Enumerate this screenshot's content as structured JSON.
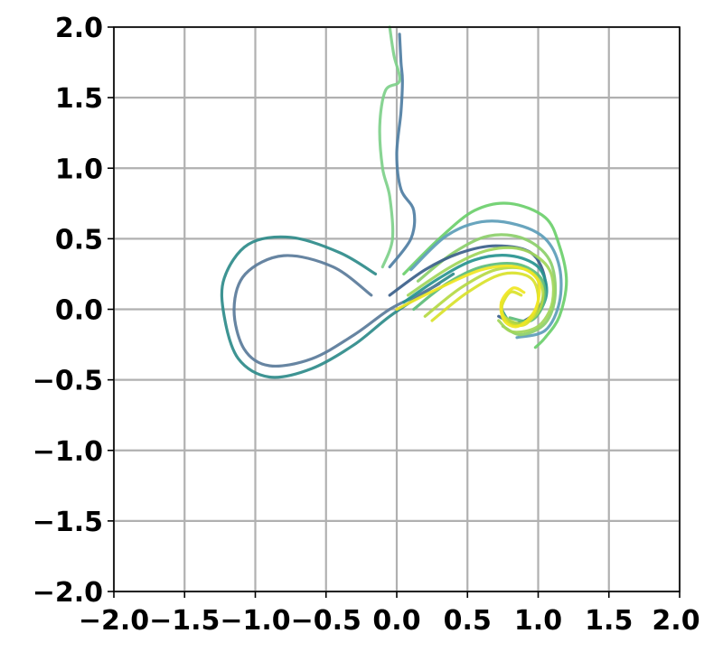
{
  "chart_data": {
    "type": "line",
    "title": "",
    "xlabel": "",
    "ylabel": "",
    "xlim": [
      -2.0,
      2.0
    ],
    "ylim": [
      -2.0,
      2.0
    ],
    "grid": true,
    "legend": "none",
    "x_ticks": [
      -2.0,
      -1.5,
      -1.0,
      -0.5,
      0.0,
      0.5,
      1.0,
      1.5,
      2.0
    ],
    "y_ticks": [
      -2.0,
      -1.5,
      -1.0,
      -0.5,
      0.0,
      0.5,
      1.0,
      1.5,
      2.0
    ],
    "x_tick_labels": [
      "−2.0",
      "−1.5",
      "−1.0",
      "−0.5",
      "0.0",
      "0.5",
      "1.0",
      "1.5",
      "2.0"
    ],
    "y_tick_labels": [
      "−2.0",
      "−1.5",
      "−1.0",
      "−0.5",
      "0.0",
      "0.5",
      "1.0",
      "1.5",
      "2.0"
    ],
    "series": [
      {
        "color": "#2e8b8a",
        "points": [
          [
            -0.15,
            0.25
          ],
          [
            -0.4,
            0.4
          ],
          [
            -0.75,
            0.51
          ],
          [
            -1.05,
            0.46
          ],
          [
            -1.22,
            0.22
          ],
          [
            -1.22,
            -0.05
          ],
          [
            -1.12,
            -0.35
          ],
          [
            -0.9,
            -0.48
          ],
          [
            -0.6,
            -0.42
          ],
          [
            -0.3,
            -0.25
          ],
          [
            -0.05,
            -0.05
          ],
          [
            0.2,
            0.12
          ],
          [
            0.4,
            0.25
          ]
        ]
      },
      {
        "color": "#5a7b9a",
        "points": [
          [
            -0.18,
            0.1
          ],
          [
            -0.45,
            0.3
          ],
          [
            -0.8,
            0.38
          ],
          [
            -1.07,
            0.25
          ],
          [
            -1.15,
            0.0
          ],
          [
            -1.08,
            -0.28
          ],
          [
            -0.9,
            -0.4
          ],
          [
            -0.6,
            -0.35
          ],
          [
            -0.3,
            -0.18
          ],
          [
            -0.05,
            0.0
          ],
          [
            0.15,
            0.1
          ],
          [
            0.3,
            0.18
          ]
        ]
      },
      {
        "color": "#7ed08a",
        "points": [
          [
            -0.05,
            2.0
          ],
          [
            -0.02,
            1.8
          ],
          [
            0.02,
            1.62
          ],
          [
            -0.08,
            1.55
          ],
          [
            -0.12,
            1.3
          ],
          [
            -0.1,
            1.0
          ],
          [
            -0.05,
            0.8
          ],
          [
            -0.03,
            0.5
          ],
          [
            -0.1,
            0.3
          ]
        ]
      },
      {
        "color": "#4f7ea3",
        "points": [
          [
            0.02,
            1.95
          ],
          [
            0.03,
            1.75
          ],
          [
            0.04,
            1.62
          ],
          [
            0.03,
            1.4
          ],
          [
            0.0,
            1.1
          ],
          [
            0.03,
            0.85
          ],
          [
            0.12,
            0.7
          ],
          [
            0.1,
            0.5
          ],
          [
            -0.05,
            0.3
          ]
        ]
      },
      {
        "color": "#6bcf6b",
        "points": [
          [
            0.05,
            0.25
          ],
          [
            0.3,
            0.5
          ],
          [
            0.55,
            0.7
          ],
          [
            0.8,
            0.75
          ],
          [
            1.05,
            0.65
          ],
          [
            1.15,
            0.45
          ],
          [
            1.2,
            0.2
          ],
          [
            1.15,
            -0.05
          ],
          [
            1.05,
            -0.2
          ],
          [
            0.98,
            -0.27
          ]
        ]
      },
      {
        "color": "#5c9db8",
        "points": [
          [
            0.1,
            0.28
          ],
          [
            0.35,
            0.52
          ],
          [
            0.6,
            0.62
          ],
          [
            0.85,
            0.6
          ],
          [
            1.05,
            0.5
          ],
          [
            1.15,
            0.3
          ],
          [
            1.15,
            0.05
          ],
          [
            1.05,
            -0.15
          ],
          [
            0.85,
            -0.2
          ]
        ]
      },
      {
        "color": "#8ccf6a",
        "points": [
          [
            0.15,
            0.2
          ],
          [
            0.4,
            0.4
          ],
          [
            0.65,
            0.52
          ],
          [
            0.9,
            0.5
          ],
          [
            1.08,
            0.35
          ],
          [
            1.12,
            0.1
          ],
          [
            1.05,
            -0.1
          ],
          [
            0.88,
            -0.18
          ],
          [
            0.75,
            -0.12
          ]
        ]
      },
      {
        "color": "#3b5f8a",
        "points": [
          [
            -0.05,
            0.1
          ],
          [
            0.2,
            0.28
          ],
          [
            0.45,
            0.4
          ],
          [
            0.7,
            0.45
          ],
          [
            0.95,
            0.4
          ],
          [
            1.05,
            0.2
          ],
          [
            1.0,
            0.0
          ],
          [
            0.85,
            -0.1
          ],
          [
            0.72,
            -0.05
          ]
        ]
      },
      {
        "color": "#27948f",
        "points": [
          [
            0.05,
            0.05
          ],
          [
            0.3,
            0.22
          ],
          [
            0.55,
            0.35
          ],
          [
            0.8,
            0.38
          ],
          [
            1.0,
            0.3
          ],
          [
            1.06,
            0.12
          ],
          [
            0.98,
            -0.05
          ],
          [
            0.82,
            -0.1
          ],
          [
            0.74,
            0.0
          ]
        ]
      },
      {
        "color": "#5dbd7a",
        "points": [
          [
            0.12,
            0.0
          ],
          [
            0.35,
            0.18
          ],
          [
            0.6,
            0.3
          ],
          [
            0.85,
            0.32
          ],
          [
            1.02,
            0.22
          ],
          [
            1.04,
            0.05
          ],
          [
            0.95,
            -0.08
          ],
          [
            0.8,
            -0.06
          ]
        ]
      },
      {
        "color": "#b5d944",
        "points": [
          [
            0.2,
            -0.05
          ],
          [
            0.45,
            0.15
          ],
          [
            0.7,
            0.28
          ],
          [
            0.92,
            0.28
          ],
          [
            1.03,
            0.15
          ],
          [
            1.0,
            -0.02
          ],
          [
            0.88,
            -0.1
          ],
          [
            0.76,
            -0.05
          ],
          [
            0.74,
            0.05
          ]
        ]
      },
      {
        "color": "#d9e22a",
        "points": [
          [
            0.25,
            -0.08
          ],
          [
            0.5,
            0.12
          ],
          [
            0.75,
            0.25
          ],
          [
            0.95,
            0.22
          ],
          [
            1.0,
            0.05
          ],
          [
            0.92,
            -0.1
          ],
          [
            0.8,
            -0.1
          ],
          [
            0.74,
            0.0
          ],
          [
            0.8,
            0.12
          ],
          [
            0.88,
            0.1
          ]
        ]
      },
      {
        "color": "#f0e622",
        "points": [
          [
            0.0,
            0.0
          ],
          [
            0.3,
            0.15
          ],
          [
            0.6,
            0.28
          ],
          [
            0.85,
            0.3
          ],
          [
            1.0,
            0.2
          ],
          [
            0.98,
            0.0
          ],
          [
            0.86,
            -0.12
          ],
          [
            0.76,
            -0.08
          ],
          [
            0.74,
            0.05
          ],
          [
            0.82,
            0.15
          ],
          [
            0.9,
            0.12
          ]
        ]
      },
      {
        "color": "#a1d65a",
        "points": [
          [
            0.08,
            0.1
          ],
          [
            0.38,
            0.3
          ],
          [
            0.65,
            0.42
          ],
          [
            0.9,
            0.42
          ],
          [
            1.08,
            0.28
          ],
          [
            1.1,
            0.05
          ],
          [
            1.0,
            -0.12
          ],
          [
            0.82,
            -0.16
          ],
          [
            0.72,
            -0.08
          ]
        ]
      }
    ]
  }
}
